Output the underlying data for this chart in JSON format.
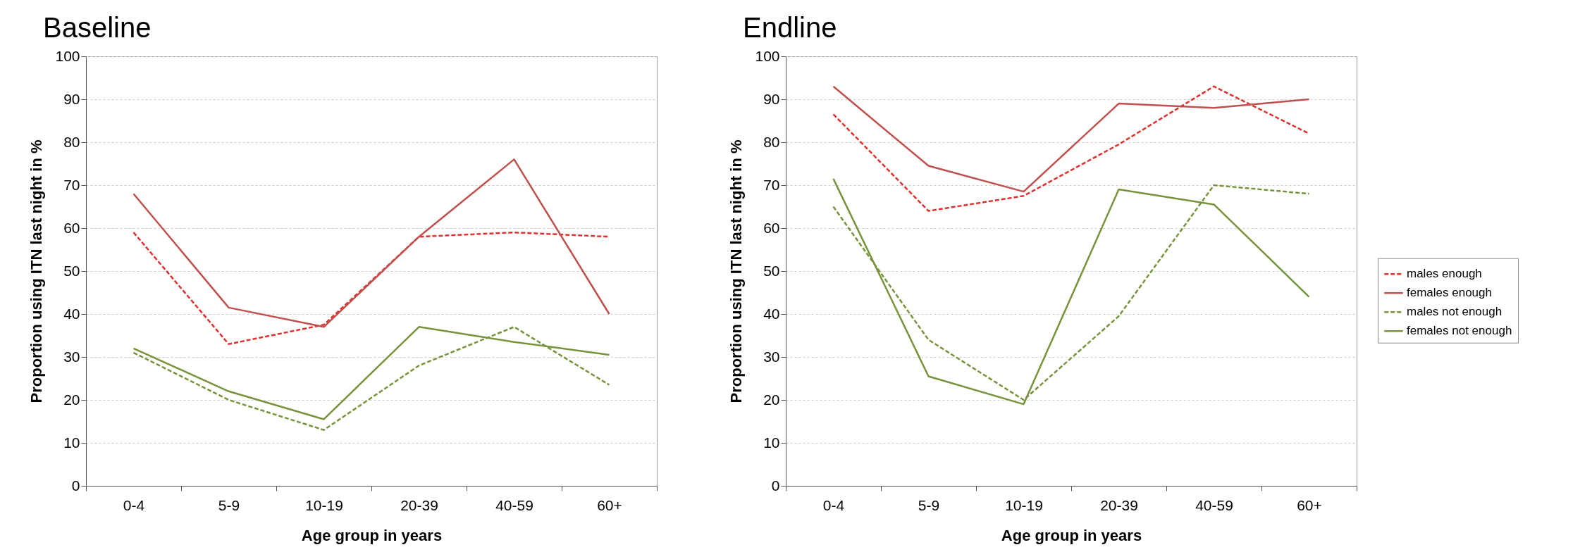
{
  "chart_data": [
    {
      "type": "line",
      "title": "Baseline",
      "xlabel": "Age group in years",
      "ylabel": "Proportion using ITN last night in %",
      "categories": [
        "0-4",
        "5-9",
        "10-19",
        "20-39",
        "40-59",
        "60+"
      ],
      "ylim": [
        0,
        100
      ],
      "yticks": [
        0,
        10,
        20,
        30,
        40,
        50,
        60,
        70,
        80,
        90,
        100
      ],
      "grid": "y",
      "legend": false,
      "marker": "none",
      "series": [
        {
          "color": "#e0302e",
          "line_style": "dashed",
          "values": [
            59,
            33,
            37.5,
            58,
            59,
            58
          ]
        },
        {
          "color": "#c0504d",
          "line_style": "solid",
          "values": [
            68,
            41.5,
            37,
            58,
            76,
            40
          ]
        },
        {
          "color": "#77933c",
          "line_style": "dashed",
          "values": [
            31,
            20,
            13,
            28,
            37,
            23.5
          ]
        },
        {
          "color": "#77933c",
          "line_style": "solid",
          "values": [
            32,
            22,
            15.5,
            37,
            33.5,
            30.5
          ]
        }
      ]
    },
    {
      "type": "line",
      "title": "Endline",
      "xlabel": "Age group in years",
      "ylabel": "Proportion using ITN last night in %",
      "categories": [
        "0-4",
        "5-9",
        "10-19",
        "20-39",
        "40-59",
        "60+"
      ],
      "ylim": [
        0,
        100
      ],
      "yticks": [
        0,
        10,
        20,
        30,
        40,
        50,
        60,
        70,
        80,
        90,
        100
      ],
      "grid": "y",
      "legend": "right",
      "marker": "none",
      "series": [
        {
          "name": "males enough",
          "color": "#e0302e",
          "line_style": "dashed",
          "values": [
            86.5,
            64,
            67.5,
            79.5,
            93,
            82
          ]
        },
        {
          "name": "females enough",
          "color": "#c0504d",
          "line_style": "solid",
          "values": [
            93,
            74.5,
            68.5,
            89,
            88,
            90
          ]
        },
        {
          "name": "males not enough",
          "color": "#77933c",
          "line_style": "dashed",
          "values": [
            65,
            34,
            20,
            39.5,
            70,
            68
          ]
        },
        {
          "name": "females not enough",
          "color": "#77933c",
          "line_style": "solid",
          "values": [
            71.5,
            25.5,
            19,
            69,
            65.5,
            44
          ]
        }
      ]
    }
  ]
}
